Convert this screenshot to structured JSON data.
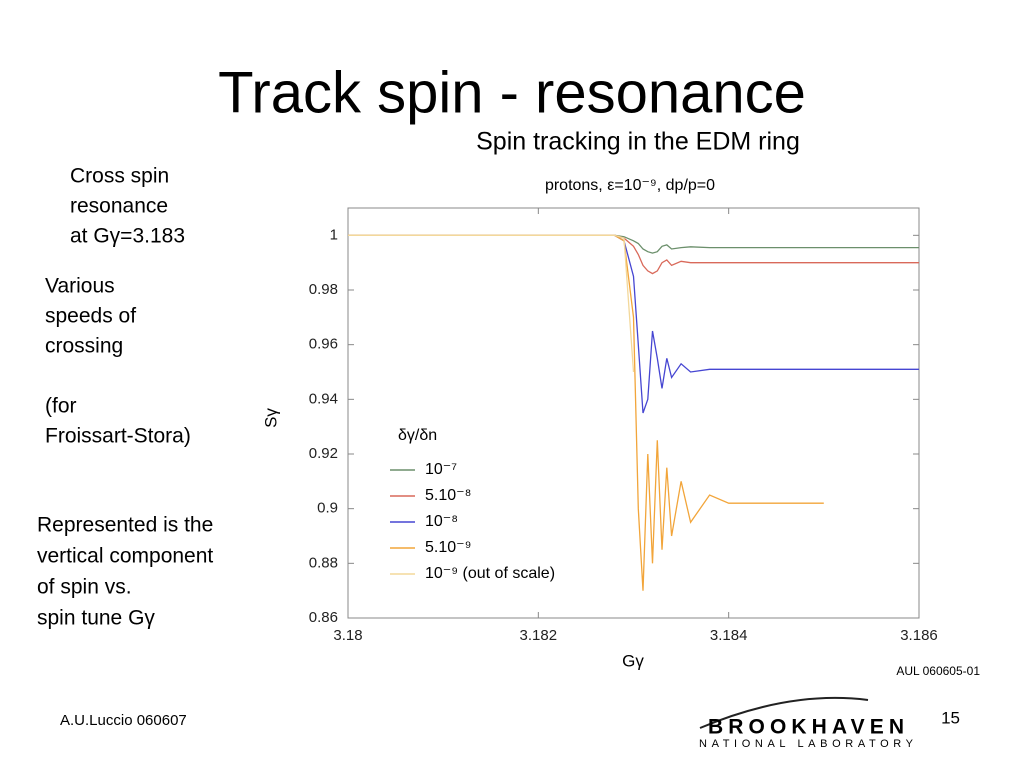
{
  "slide": {
    "title": "Track spin - resonance",
    "note1": [
      "Cross spin",
      "resonance",
      "at Gγ=3.183"
    ],
    "note2": [
      "Various",
      "speeds of",
      "crossing"
    ],
    "note3": [
      "(for",
      "Froissart-Stora)"
    ],
    "note4": [
      "Represented is the",
      "vertical component",
      "of spin vs.",
      "spin tune Gγ"
    ],
    "footer_author": "A.U.Luccio  060607",
    "page_number": "15",
    "logo_main": "BROOKHAVEN",
    "logo_sub": "NATIONAL LABORATORY"
  },
  "chart_data": {
    "type": "line",
    "title": "Spin tracking in the EDM ring",
    "subtitle": "protons, ε=10⁻⁹, dp/p=0",
    "x_label": "Gγ",
    "y_label": "Sγ",
    "annotation": "AUL 060605-01",
    "legend_title": "δγ/δn",
    "x": [
      3.18,
      3.182,
      3.1828,
      3.1829,
      3.183,
      3.18305,
      3.1831,
      3.18315,
      3.1832,
      3.18325,
      3.1833,
      3.18335,
      3.1834,
      3.1835,
      3.1836,
      3.1838,
      3.184,
      3.185,
      3.186
    ],
    "series": [
      {
        "name": "10⁻⁷",
        "color": "#6b8f6b",
        "values": [
          1,
          1,
          1,
          0.9995,
          0.998,
          0.997,
          0.995,
          0.994,
          0.9935,
          0.994,
          0.996,
          0.9965,
          0.995,
          0.9955,
          0.9958,
          0.9955,
          0.9955,
          0.9955,
          0.9955
        ]
      },
      {
        "name": "5.10⁻⁸",
        "color": "#d9695a",
        "values": [
          1,
          1,
          1,
          0.999,
          0.996,
          0.993,
          0.989,
          0.987,
          0.986,
          0.987,
          0.99,
          0.991,
          0.989,
          0.9905,
          0.99,
          0.99,
          0.99,
          0.99,
          0.99
        ]
      },
      {
        "name": "10⁻⁸",
        "color": "#4646d2",
        "values": [
          1,
          1,
          1,
          0.998,
          0.985,
          0.96,
          0.935,
          0.94,
          0.965,
          0.955,
          0.944,
          0.955,
          0.948,
          0.953,
          0.95,
          0.951,
          0.951,
          0.951,
          0.951
        ]
      },
      {
        "name": "5.10⁻⁹",
        "color": "#f2a53a",
        "values": [
          1,
          1,
          1,
          0.998,
          0.97,
          0.9,
          0.87,
          0.92,
          0.88,
          0.925,
          0.885,
          0.915,
          0.89,
          0.91,
          0.895,
          0.905,
          0.902,
          0.902,
          null
        ]
      },
      {
        "name": "10⁻⁹ (out of scale)",
        "color": "#f3d89a",
        "values": [
          1,
          1,
          1,
          0.999,
          0.95,
          null,
          null,
          null,
          null,
          null,
          null,
          null,
          null,
          null,
          null,
          null,
          null,
          null,
          null
        ]
      }
    ],
    "xlim": [
      3.18,
      3.186
    ],
    "xticks": [
      3.18,
      3.182,
      3.184,
      3.186
    ],
    "ylim": [
      0.86,
      1.01
    ],
    "yticks": [
      0.86,
      0.88,
      0.9,
      0.92,
      0.94,
      0.96,
      0.98,
      1
    ]
  }
}
